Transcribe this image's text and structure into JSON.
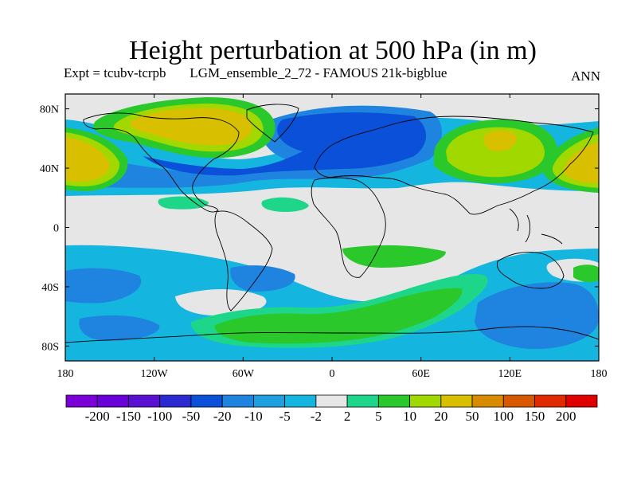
{
  "chart_data": {
    "type": "heatmap",
    "title": "Height perturbation at 500 hPa (in m)",
    "subtitle": "Expt = tcubv-tcrpb       LGM_ensemble_2_72 - FAMOUS 21k-bigblue",
    "season": "ANN",
    "xlim": [
      -180,
      180
    ],
    "ylim": [
      -90,
      90
    ],
    "x_ticks": [
      {
        "value": -180,
        "label": "180"
      },
      {
        "value": -120,
        "label": "120W"
      },
      {
        "value": -60,
        "label": "60W"
      },
      {
        "value": 0,
        "label": "0"
      },
      {
        "value": 60,
        "label": "60E"
      },
      {
        "value": 120,
        "label": "120E"
      },
      {
        "value": 180,
        "label": "180"
      }
    ],
    "y_ticks": [
      {
        "value": 80,
        "label": "80N"
      },
      {
        "value": 40,
        "label": "40N"
      },
      {
        "value": 0,
        "label": "0"
      },
      {
        "value": -40,
        "label": "40S"
      },
      {
        "value": -80,
        "label": "80S"
      }
    ],
    "colorbar": {
      "labels": [
        "-200",
        "-150",
        "-100",
        "-50",
        "-20",
        "-10",
        "-5",
        "-2",
        "2",
        "5",
        "10",
        "20",
        "50",
        "100",
        "150",
        "200"
      ],
      "colors": [
        "#7b00d8",
        "#6a00d8",
        "#5a10d0",
        "#2a2ad0",
        "#0a50d8",
        "#1e84e0",
        "#1ea0e0",
        "#14b6e0",
        "#e6e6e6",
        "#1ed68a",
        "#2ac82a",
        "#a0d800",
        "#d8c000",
        "#d88a00",
        "#d85800",
        "#e02a00",
        "#e00000"
      ]
    },
    "features": [
      {
        "name": "N America high",
        "lon": [
          -132,
          -88
        ],
        "lat": [
          66,
          78
        ],
        "level": "20-50"
      },
      {
        "name": "NE Pacific high",
        "lon": [
          -180,
          -164
        ],
        "lat": [
          36,
          50
        ],
        "level": "20-50"
      },
      {
        "name": "NW Pacific high",
        "lon": [
          150,
          180
        ],
        "lat": [
          34,
          50
        ],
        "level": "20-50"
      },
      {
        "name": "Asian high",
        "lon": [
          84,
          108
        ],
        "lat": [
          50,
          62
        ],
        "level": "20-50"
      },
      {
        "name": "N Atlantic-Europe low",
        "lon": [
          -55,
          40
        ],
        "lat": [
          45,
          75
        ],
        "level": "-50 to -20"
      },
      {
        "name": "SE Pacific low",
        "lon": [
          -160,
          -120
        ],
        "lat": [
          -40,
          -30
        ],
        "level": "-20 to -10"
      },
      {
        "name": "S Pacific low",
        "lon": [
          110,
          165
        ],
        "lat": [
          -65,
          -40
        ],
        "level": "-20 to -10"
      },
      {
        "name": "Southern Ocean high band",
        "lon": [
          -100,
          40
        ],
        "lat": [
          -72,
          -58
        ],
        "level": "5-20"
      }
    ]
  }
}
